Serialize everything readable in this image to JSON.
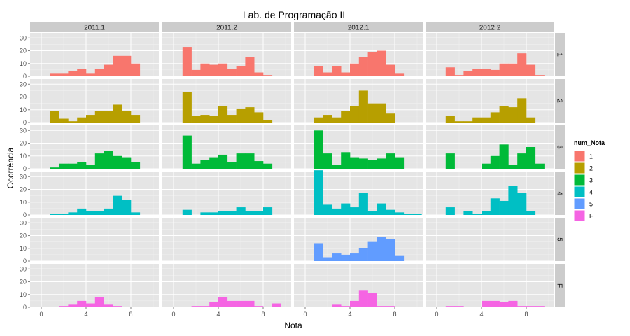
{
  "chart_data": {
    "type": "bar",
    "subtype": "histogram-facet-grid",
    "title": "Lab. de Programação II",
    "xlabel": "Nota",
    "ylabel": "Ocorrência",
    "xlim": [
      -1,
      10.5
    ],
    "ylim": [
      0,
      34
    ],
    "xticks": [
      0,
      4,
      8
    ],
    "yticks": [
      0,
      10,
      20,
      30
    ],
    "bin_width": 0.8,
    "bin_starts": [
      0,
      0.8,
      1.6,
      2.4,
      3.2,
      4.0,
      4.8,
      5.6,
      6.4,
      7.2,
      8.0,
      8.8,
      9.6
    ],
    "grid": true,
    "columns": [
      "2011.1",
      "2011.2",
      "2012.1",
      "2012.2"
    ],
    "rows": [
      "1",
      "2",
      "3",
      "4",
      "5",
      "F"
    ],
    "legend": {
      "title": "num_Nota",
      "placement": "right",
      "items": [
        {
          "label": "1",
          "color": "#F8766D"
        },
        {
          "label": "2",
          "color": "#B79F00"
        },
        {
          "label": "3",
          "color": "#00BA38"
        },
        {
          "label": "4",
          "color": "#00BFC4"
        },
        {
          "label": "5",
          "color": "#619CFF"
        },
        {
          "label": "F",
          "color": "#F564E3"
        }
      ]
    },
    "panels": [
      [
        [
          0,
          2,
          2,
          4,
          6,
          2,
          6,
          9,
          16,
          16,
          10,
          0,
          0
        ],
        [
          0,
          23,
          5,
          10,
          9,
          10,
          6,
          8,
          15,
          3,
          1,
          0,
          0
        ],
        [
          0,
          8,
          3,
          8,
          3,
          10,
          15,
          19,
          20,
          9,
          2,
          0,
          0
        ],
        [
          0,
          7,
          1,
          4,
          6,
          6,
          5,
          10,
          10,
          18,
          9,
          1,
          0
        ]
      ],
      [
        [
          0,
          9,
          3,
          1,
          4,
          6,
          9,
          9,
          14,
          9,
          6,
          0,
          0
        ],
        [
          0,
          24,
          5,
          6,
          5,
          13,
          6,
          11,
          12,
          8,
          2,
          0,
          0
        ],
        [
          0,
          4,
          6,
          4,
          9,
          13,
          25,
          15,
          15,
          7,
          0,
          0,
          0
        ],
        [
          0,
          5,
          1,
          1,
          4,
          4,
          8,
          13,
          12,
          19,
          4,
          0,
          0
        ]
      ],
      [
        [
          0,
          1,
          4,
          4,
          5,
          3,
          12,
          14,
          10,
          9,
          5,
          0,
          0
        ],
        [
          0,
          26,
          4,
          7,
          9,
          11,
          5,
          12,
          12,
          6,
          4,
          0,
          0
        ],
        [
          0,
          30,
          12,
          3,
          13,
          9,
          8,
          7,
          8,
          12,
          9,
          0,
          0
        ],
        [
          0,
          12,
          0,
          0,
          0,
          4,
          10,
          19,
          3,
          12,
          17,
          4,
          0
        ]
      ],
      [
        [
          0,
          1,
          1,
          2,
          5,
          3,
          3,
          5,
          15,
          12,
          2,
          0,
          0
        ],
        [
          0,
          4,
          0,
          2,
          2,
          3,
          3,
          6,
          3,
          3,
          6,
          0,
          0
        ],
        [
          0,
          35,
          8,
          5,
          9,
          6,
          17,
          3,
          9,
          4,
          2,
          1,
          1
        ],
        [
          0,
          6,
          0,
          3,
          1,
          3,
          13,
          11,
          23,
          17,
          3,
          0,
          0
        ]
      ],
      [
        [
          0,
          0,
          0,
          0,
          0,
          0,
          0,
          0,
          0,
          0,
          0,
          0,
          0
        ],
        [
          0,
          0,
          0,
          0,
          0,
          0,
          0,
          0,
          0,
          0,
          0,
          0,
          0
        ],
        [
          0,
          14,
          3,
          6,
          5,
          6,
          10,
          15,
          19,
          17,
          4,
          0,
          0
        ],
        [
          0,
          0,
          0,
          0,
          0,
          0,
          0,
          0,
          0,
          0,
          0,
          0,
          0
        ]
      ],
      [
        [
          0,
          0,
          1,
          2,
          5,
          3,
          8,
          2,
          1,
          0,
          0,
          0,
          0
        ],
        [
          0,
          0,
          1,
          1,
          4,
          8,
          5,
          5,
          5,
          1,
          0,
          3,
          0
        ],
        [
          0,
          0,
          0,
          2,
          1,
          5,
          13,
          11,
          1,
          1,
          0,
          0,
          0
        ],
        [
          0,
          1,
          1,
          0,
          0,
          5,
          5,
          4,
          5,
          1,
          1,
          1,
          0
        ]
      ]
    ]
  }
}
